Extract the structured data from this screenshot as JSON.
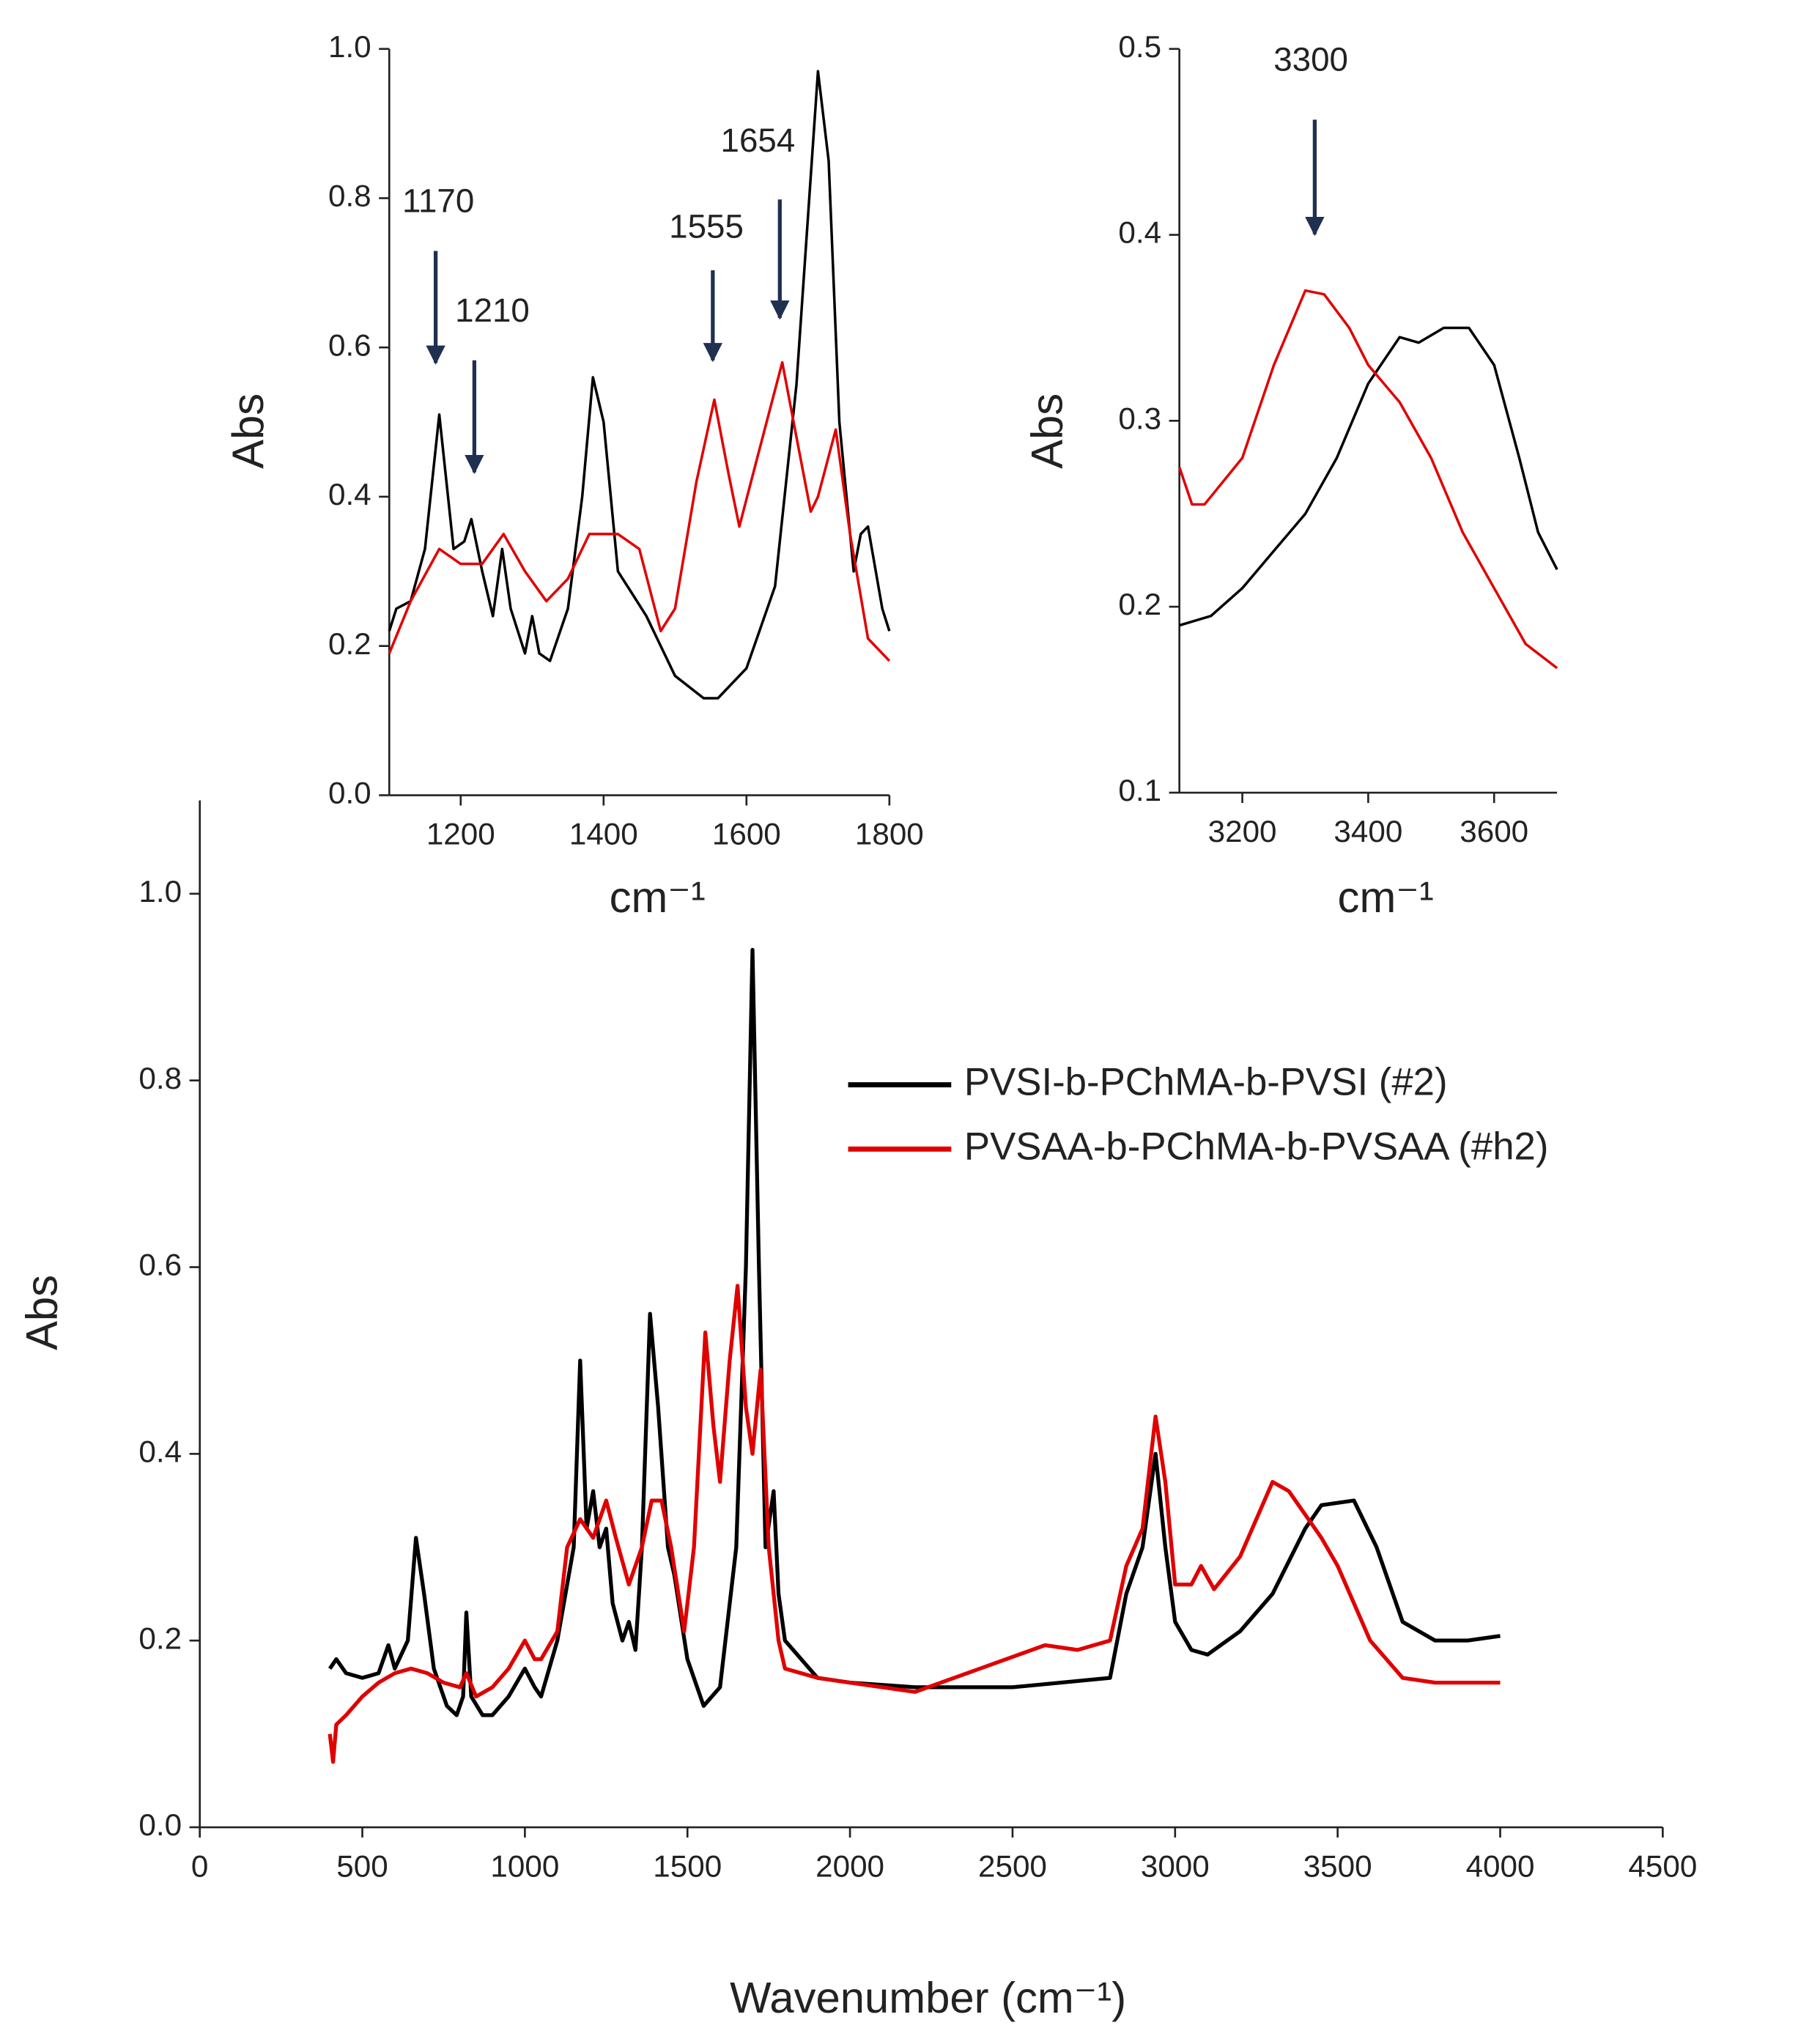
{
  "chart_data": [
    {
      "type": "line",
      "x_label": "Wavenumber (cm⁻¹)",
      "y_label": "Abs",
      "xlim": [
        0,
        4500
      ],
      "xticks": [
        0,
        500,
        1000,
        1500,
        2000,
        2500,
        3000,
        3500,
        4000,
        4500
      ],
      "ylim": [
        0,
        1.1
      ],
      "yticks": [
        {
          "value": 0,
          "label": "0.0"
        },
        0.2,
        0.4,
        0.6,
        0.8,
        {
          "value": 1,
          "label": "1.0"
        }
      ],
      "legend": "upper right",
      "series": [
        {
          "name": "PVSI-b-PChMA-b-PVSI (#2)",
          "color": "#000000",
          "x": [
            400,
            420,
            450,
            500,
            550,
            580,
            600,
            640,
            665,
            690,
            720,
            760,
            790,
            810,
            820,
            835,
            870,
            900,
            950,
            1000,
            1030,
            1050,
            1100,
            1130,
            1150,
            1170,
            1190,
            1210,
            1230,
            1250,
            1270,
            1300,
            1320,
            1340,
            1360,
            1385,
            1410,
            1440,
            1460,
            1500,
            1550,
            1600,
            1650,
            1680,
            1700,
            1720,
            1740,
            1765,
            1780,
            1800,
            1900,
            2000,
            2200,
            2500,
            2800,
            2850,
            2900,
            2940,
            2970,
            3000,
            3050,
            3100,
            3200,
            3300,
            3400,
            3450,
            3550,
            3620,
            3700,
            3800,
            3900,
            4000
          ],
          "values": [
            0.17,
            0.18,
            0.165,
            0.16,
            0.165,
            0.195,
            0.17,
            0.2,
            0.31,
            0.25,
            0.17,
            0.13,
            0.12,
            0.14,
            0.23,
            0.14,
            0.12,
            0.12,
            0.14,
            0.17,
            0.15,
            0.14,
            0.2,
            0.26,
            0.3,
            0.5,
            0.32,
            0.36,
            0.3,
            0.32,
            0.24,
            0.2,
            0.22,
            0.19,
            0.3,
            0.55,
            0.45,
            0.3,
            0.27,
            0.18,
            0.13,
            0.15,
            0.3,
            0.6,
            0.94,
            0.6,
            0.3,
            0.36,
            0.25,
            0.2,
            0.16,
            0.155,
            0.15,
            0.15,
            0.16,
            0.25,
            0.3,
            0.4,
            0.3,
            0.22,
            0.19,
            0.185,
            0.21,
            0.25,
            0.32,
            0.345,
            0.35,
            0.3,
            0.22,
            0.2,
            0.2,
            0.205
          ]
        },
        {
          "name": "PVSAA-b-PChMA-b-PVSAA (#h2)",
          "color": "#e00000",
          "x": [
            400,
            410,
            420,
            450,
            500,
            550,
            600,
            650,
            700,
            750,
            800,
            820,
            850,
            900,
            950,
            1000,
            1030,
            1050,
            1100,
            1130,
            1170,
            1210,
            1250,
            1280,
            1320,
            1360,
            1390,
            1420,
            1450,
            1490,
            1520,
            1555,
            1580,
            1600,
            1630,
            1654,
            1680,
            1700,
            1725,
            1750,
            1780,
            1800,
            1900,
            2000,
            2200,
            2400,
            2600,
            2700,
            2800,
            2850,
            2900,
            2940,
            2970,
            3000,
            3050,
            3080,
            3120,
            3200,
            3300,
            3350,
            3450,
            3500,
            3600,
            3700,
            3800,
            4000
          ],
          "values": [
            0.1,
            0.07,
            0.11,
            0.12,
            0.14,
            0.155,
            0.165,
            0.17,
            0.165,
            0.155,
            0.15,
            0.165,
            0.14,
            0.15,
            0.17,
            0.2,
            0.18,
            0.18,
            0.21,
            0.3,
            0.33,
            0.31,
            0.35,
            0.31,
            0.26,
            0.3,
            0.35,
            0.35,
            0.3,
            0.21,
            0.3,
            0.53,
            0.43,
            0.37,
            0.5,
            0.58,
            0.45,
            0.4,
            0.49,
            0.3,
            0.2,
            0.17,
            0.16,
            0.155,
            0.145,
            0.17,
            0.195,
            0.19,
            0.2,
            0.28,
            0.32,
            0.44,
            0.37,
            0.26,
            0.26,
            0.28,
            0.255,
            0.29,
            0.37,
            0.36,
            0.31,
            0.28,
            0.2,
            0.16,
            0.155,
            0.155
          ]
        }
      ]
    },
    {
      "type": "line",
      "x_label": "cm⁻¹",
      "y_label": "Abs",
      "xlim": [
        1100,
        1800
      ],
      "xticks": [
        1200,
        1400,
        1600,
        1800
      ],
      "ylim": [
        0,
        1
      ],
      "yticks": [
        {
          "value": 0,
          "label": "0.0"
        },
        0.2,
        0.4,
        0.6,
        0.8,
        {
          "value": 1,
          "label": "1.0"
        }
      ],
      "annotations": [
        "1170",
        "1210",
        "1555",
        "1654"
      ],
      "series": [
        {
          "color": "#000000",
          "x": [
            1100,
            1110,
            1130,
            1150,
            1170,
            1190,
            1205,
            1215,
            1230,
            1245,
            1258,
            1270,
            1290,
            1300,
            1310,
            1325,
            1350,
            1370,
            1385,
            1400,
            1420,
            1440,
            1460,
            1500,
            1540,
            1560,
            1600,
            1640,
            1670,
            1700,
            1715,
            1730,
            1750,
            1760,
            1770,
            1790,
            1800
          ],
          "values": [
            0.22,
            0.25,
            0.26,
            0.33,
            0.51,
            0.33,
            0.34,
            0.37,
            0.3,
            0.24,
            0.33,
            0.25,
            0.19,
            0.24,
            0.19,
            0.18,
            0.25,
            0.4,
            0.56,
            0.5,
            0.3,
            0.27,
            0.24,
            0.16,
            0.13,
            0.13,
            0.17,
            0.28,
            0.55,
            0.97,
            0.85,
            0.5,
            0.3,
            0.35,
            0.36,
            0.25,
            0.22
          ]
        },
        {
          "color": "#e00000",
          "x": [
            1100,
            1130,
            1170,
            1200,
            1230,
            1260,
            1290,
            1320,
            1350,
            1380,
            1420,
            1450,
            1480,
            1500,
            1530,
            1555,
            1575,
            1590,
            1620,
            1650,
            1670,
            1690,
            1700,
            1725,
            1745,
            1770,
            1800
          ],
          "values": [
            0.19,
            0.26,
            0.33,
            0.31,
            0.31,
            0.35,
            0.3,
            0.26,
            0.29,
            0.35,
            0.35,
            0.33,
            0.22,
            0.25,
            0.42,
            0.53,
            0.43,
            0.36,
            0.47,
            0.58,
            0.48,
            0.38,
            0.4,
            0.49,
            0.35,
            0.21,
            0.18
          ]
        }
      ]
    },
    {
      "type": "line",
      "x_label": "cm⁻¹",
      "y_label": "Abs",
      "xlim": [
        3100,
        3700
      ],
      "xticks": [
        3200,
        3400,
        3600
      ],
      "ylim": [
        0.1,
        0.5
      ],
      "yticks": [
        0.1,
        0.2,
        0.3,
        0.4,
        0.5
      ],
      "annotations": [
        "3300"
      ],
      "series": [
        {
          "color": "#000000",
          "x": [
            3100,
            3150,
            3200,
            3250,
            3300,
            3350,
            3400,
            3450,
            3480,
            3520,
            3560,
            3600,
            3640,
            3670,
            3700
          ],
          "values": [
            0.19,
            0.195,
            0.21,
            0.23,
            0.25,
            0.28,
            0.32,
            0.345,
            0.342,
            0.35,
            0.35,
            0.33,
            0.28,
            0.24,
            0.22
          ]
        },
        {
          "color": "#e00000",
          "x": [
            3100,
            3120,
            3140,
            3200,
            3250,
            3300,
            3330,
            3370,
            3400,
            3450,
            3500,
            3550,
            3600,
            3650,
            3700
          ],
          "values": [
            0.275,
            0.255,
            0.255,
            0.28,
            0.33,
            0.37,
            0.368,
            0.35,
            0.33,
            0.31,
            0.28,
            0.24,
            0.21,
            0.18,
            0.167
          ]
        }
      ]
    }
  ]
}
